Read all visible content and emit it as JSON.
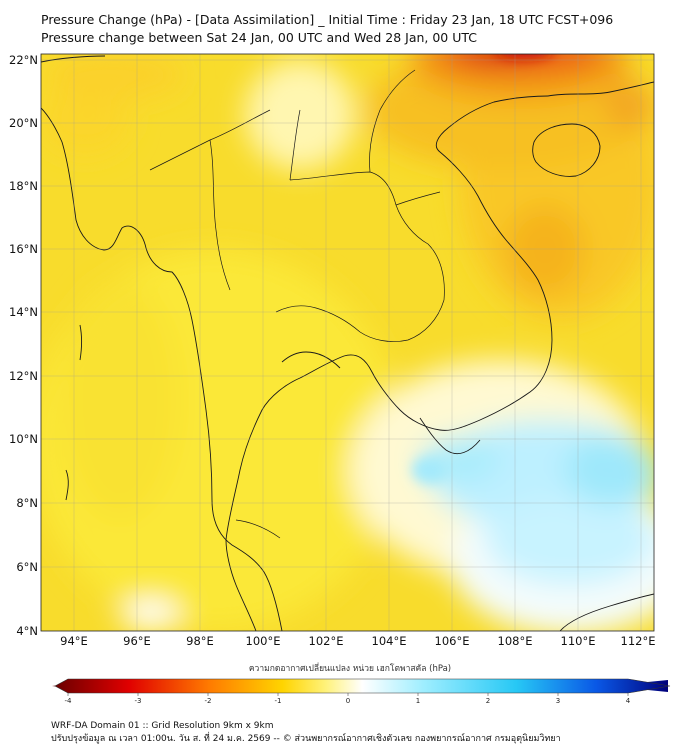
{
  "title": {
    "line1": "Pressure Change (hPa) - [Data Assimilation] _ Initial Time : Friday 23 Jan, 18 UTC FCST+096",
    "line2": "Pressure change between Sat 24 Jan, 00 UTC and Wed 28 Jan, 00 UTC"
  },
  "map": {
    "lat_labels": [
      "22°N",
      "20°N",
      "18°N",
      "16°N",
      "14°N",
      "12°N",
      "10°N",
      "8°N",
      "6°N",
      "4°N"
    ],
    "lon_labels": [
      "94°E",
      "96°E",
      "98°E",
      "100°E",
      "102°E",
      "104°E",
      "106°E",
      "108°E",
      "110°E",
      "112°E"
    ],
    "lat_range": [
      4,
      22
    ],
    "lon_range": [
      93,
      112.5
    ],
    "grid": true
  },
  "colorbar": {
    "title": "ความกดอากาศเปลี่ยนแปลง หน่วย เฮกโตพาสคัล (hPa)",
    "range": [
      -4,
      4
    ],
    "tick_labels": [
      "-4",
      "-3",
      "-2",
      "-1",
      "0",
      "1",
      "2",
      "3",
      "4"
    ],
    "colors": {
      "neg4": "#6b0000",
      "neg3": "#e00000",
      "neg2": "#ff7a00",
      "neg1": "#ffd400",
      "neg05": "#fff27a",
      "zero": "#ffffff",
      "pos1": "#9eeeff",
      "pos2": "#27c8f5",
      "pos3": "#0a58e6",
      "pos4": "#00007a"
    }
  },
  "footer": {
    "line1": "WRF-DA Domain 01 :: Grid Resolution 9km x 9km",
    "line2": "ปรับปรุงข้อมูล ณ เวลา 01:00น. วัน ส. ที่ 24 ม.ค. 2569 -- © ส่วนพยากรณ์อากาศเชิงตัวเลข กองพยากรณ์อากาศ กรมอุตุนิยมวิทยา"
  }
}
